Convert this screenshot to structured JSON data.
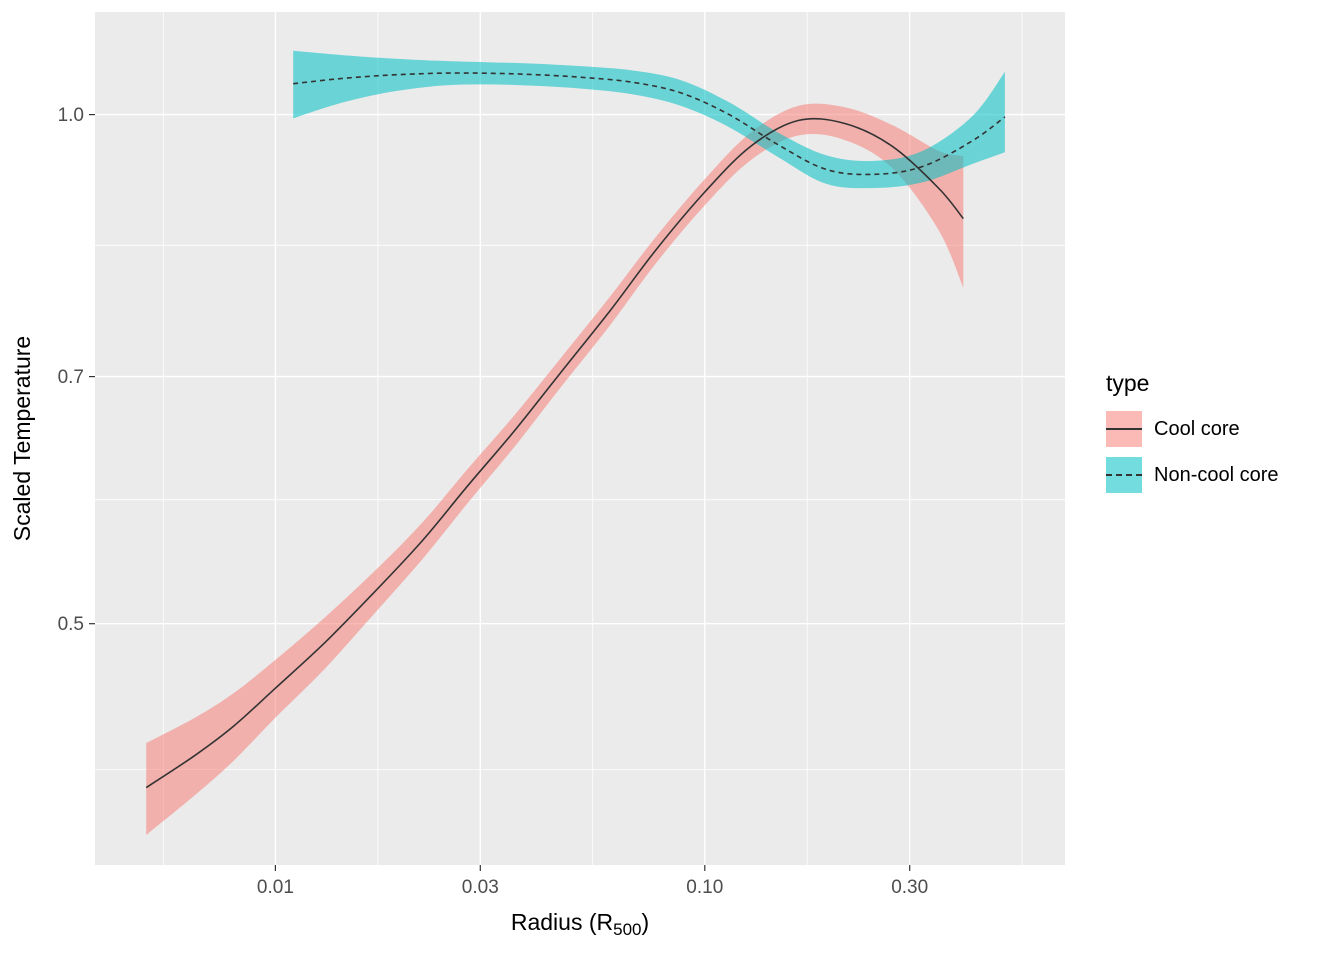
{
  "figure": {
    "background": "#FFFFFF",
    "panel_background": "#EBEBEB",
    "grid_color": "#FFFFFF",
    "axis_text_color": "#4D4D4D",
    "axis_title_color": "#000000",
    "tick_mark_color": "#333333"
  },
  "axes": {
    "x": {
      "label_prefix": "Radius (R",
      "label_sub": "500",
      "label_suffix": ")",
      "scale": "log10",
      "ticks": [
        0.01,
        0.03,
        0.1,
        0.3
      ],
      "tick_labels": [
        "0.01",
        "0.03",
        "0.10",
        "0.30"
      ],
      "minor": [
        0.00548,
        0.01732,
        0.0548,
        0.1732,
        0.548
      ]
    },
    "y": {
      "label": "Scaled Temperature",
      "scale": "log10",
      "ticks": [
        0.5,
        0.7,
        1.0
      ],
      "tick_labels": [
        "0.5",
        "0.7",
        "1.0"
      ],
      "minor": [
        0.41,
        0.592,
        0.837
      ]
    }
  },
  "legend": {
    "title": "type",
    "items": [
      {
        "label": "Cool core",
        "fill": "#F8766D",
        "fill_alpha": 0.5,
        "line_style": "solid"
      },
      {
        "label": "Non-cool core",
        "fill": "#00BFC4",
        "fill_alpha": 0.55,
        "line_style": "dashed"
      }
    ]
  },
  "chart_data": {
    "type": "line",
    "title": "",
    "xlabel": "Radius (R500)",
    "ylabel": "Scaled Temperature",
    "x_scale": "log10",
    "y_scale": "log10",
    "xlim": [
      0.0038,
      0.69
    ],
    "ylim": [
      0.36,
      1.15
    ],
    "x_ticks": [
      0.01,
      0.03,
      0.1,
      0.3
    ],
    "y_ticks": [
      0.5,
      0.7,
      1.0
    ],
    "grid": true,
    "legend_position": "right",
    "series": [
      {
        "name": "Cool core",
        "line_color": "#333333",
        "line_style": "solid",
        "ribbon_color": "#F8766D",
        "ribbon_alpha": 0.5,
        "x": [
          0.005,
          0.0065,
          0.008,
          0.01,
          0.013,
          0.017,
          0.022,
          0.028,
          0.036,
          0.046,
          0.06,
          0.077,
          0.1,
          0.128,
          0.165,
          0.212,
          0.273,
          0.35,
          0.4
        ],
        "y": [
          0.4,
          0.418,
          0.435,
          0.458,
          0.487,
          0.522,
          0.56,
          0.603,
          0.65,
          0.703,
          0.765,
          0.832,
          0.9,
          0.958,
          0.992,
          0.988,
          0.958,
          0.905,
          0.868
        ],
        "ymin": [
          0.375,
          0.396,
          0.415,
          0.44,
          0.47,
          0.507,
          0.546,
          0.589,
          0.636,
          0.689,
          0.75,
          0.817,
          0.884,
          0.94,
          0.972,
          0.966,
          0.93,
          0.855,
          0.79
        ],
        "ymax": [
          0.425,
          0.44,
          0.455,
          0.476,
          0.504,
          0.537,
          0.574,
          0.617,
          0.664,
          0.717,
          0.78,
          0.847,
          0.916,
          0.976,
          1.012,
          1.01,
          0.986,
          0.952,
          0.945
        ]
      },
      {
        "name": "Non-cool core",
        "line_color": "#333333",
        "line_style": "dashed",
        "ribbon_color": "#00BFC4",
        "ribbon_alpha": 0.55,
        "x": [
          0.011,
          0.014,
          0.018,
          0.024,
          0.031,
          0.04,
          0.052,
          0.068,
          0.088,
          0.114,
          0.148,
          0.192,
          0.249,
          0.322,
          0.42,
          0.5
        ],
        "y": [
          1.043,
          1.05,
          1.055,
          1.058,
          1.058,
          1.056,
          1.052,
          1.045,
          1.03,
          1.0,
          0.96,
          0.928,
          0.922,
          0.932,
          0.965,
          0.997
        ],
        "ymin": [
          0.995,
          1.015,
          1.03,
          1.04,
          1.042,
          1.04,
          1.036,
          1.028,
          1.012,
          0.983,
          0.944,
          0.91,
          0.905,
          0.912,
          0.935,
          0.95
        ],
        "ymax": [
          1.091,
          1.085,
          1.08,
          1.076,
          1.074,
          1.072,
          1.068,
          1.062,
          1.048,
          1.017,
          0.976,
          0.946,
          0.939,
          0.952,
          0.998,
          1.06
        ]
      }
    ]
  }
}
